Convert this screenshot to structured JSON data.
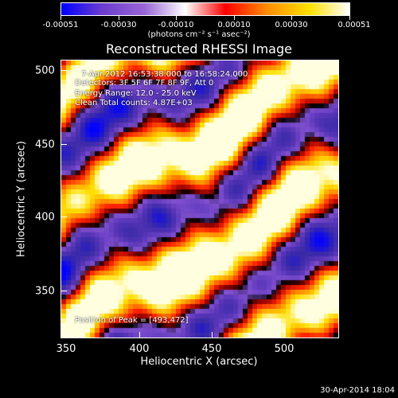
{
  "colorbar": {
    "tick_labels": [
      "-0.00051",
      "-0.00030",
      "-0.00010",
      "0.00010",
      "0.00030",
      "0.00051"
    ],
    "units": "(photons cm⁻² s⁻¹ asec⁻²)"
  },
  "title": "Reconstructed RHESSI Image",
  "info": {
    "time": "7-Apr-2012 16:53:38.000 to 16:58:24.000",
    "detectors": "Detectors: 3F 5F 6F 7F 8F 9F, Att 0",
    "energy": "Energy Range: 12.0 - 25.0 keV",
    "clean": "Clean    Total counts: 4.87E+03",
    "peak": "Position of Peak = [493,472]"
  },
  "axes": {
    "xlabel": "Heliocentric X (arcsec)",
    "ylabel": "Heliocentric Y (arcsec)",
    "xticks": [
      "350",
      "400",
      "450",
      "500"
    ],
    "yticks": [
      "500",
      "450",
      "400",
      "350"
    ]
  },
  "timestamp": "30-Apr-2014 18:04",
  "chart_data": {
    "type": "heatmap",
    "title": "Reconstructed RHESSI Image",
    "xlabel": "Heliocentric X (arcsec)",
    "ylabel": "Heliocentric Y (arcsec)",
    "xlim": [
      347,
      537
    ],
    "ylim": [
      316,
      506
    ],
    "clim": [
      -0.00051,
      0.00051
    ],
    "peak": [
      493,
      472
    ],
    "colormap": [
      "#0000ff",
      "#6a3ccf",
      "#9a66d6",
      "#ffffff",
      "#ff0000",
      "#ff8a00",
      "#ffe000",
      "#ffffff"
    ]
  }
}
